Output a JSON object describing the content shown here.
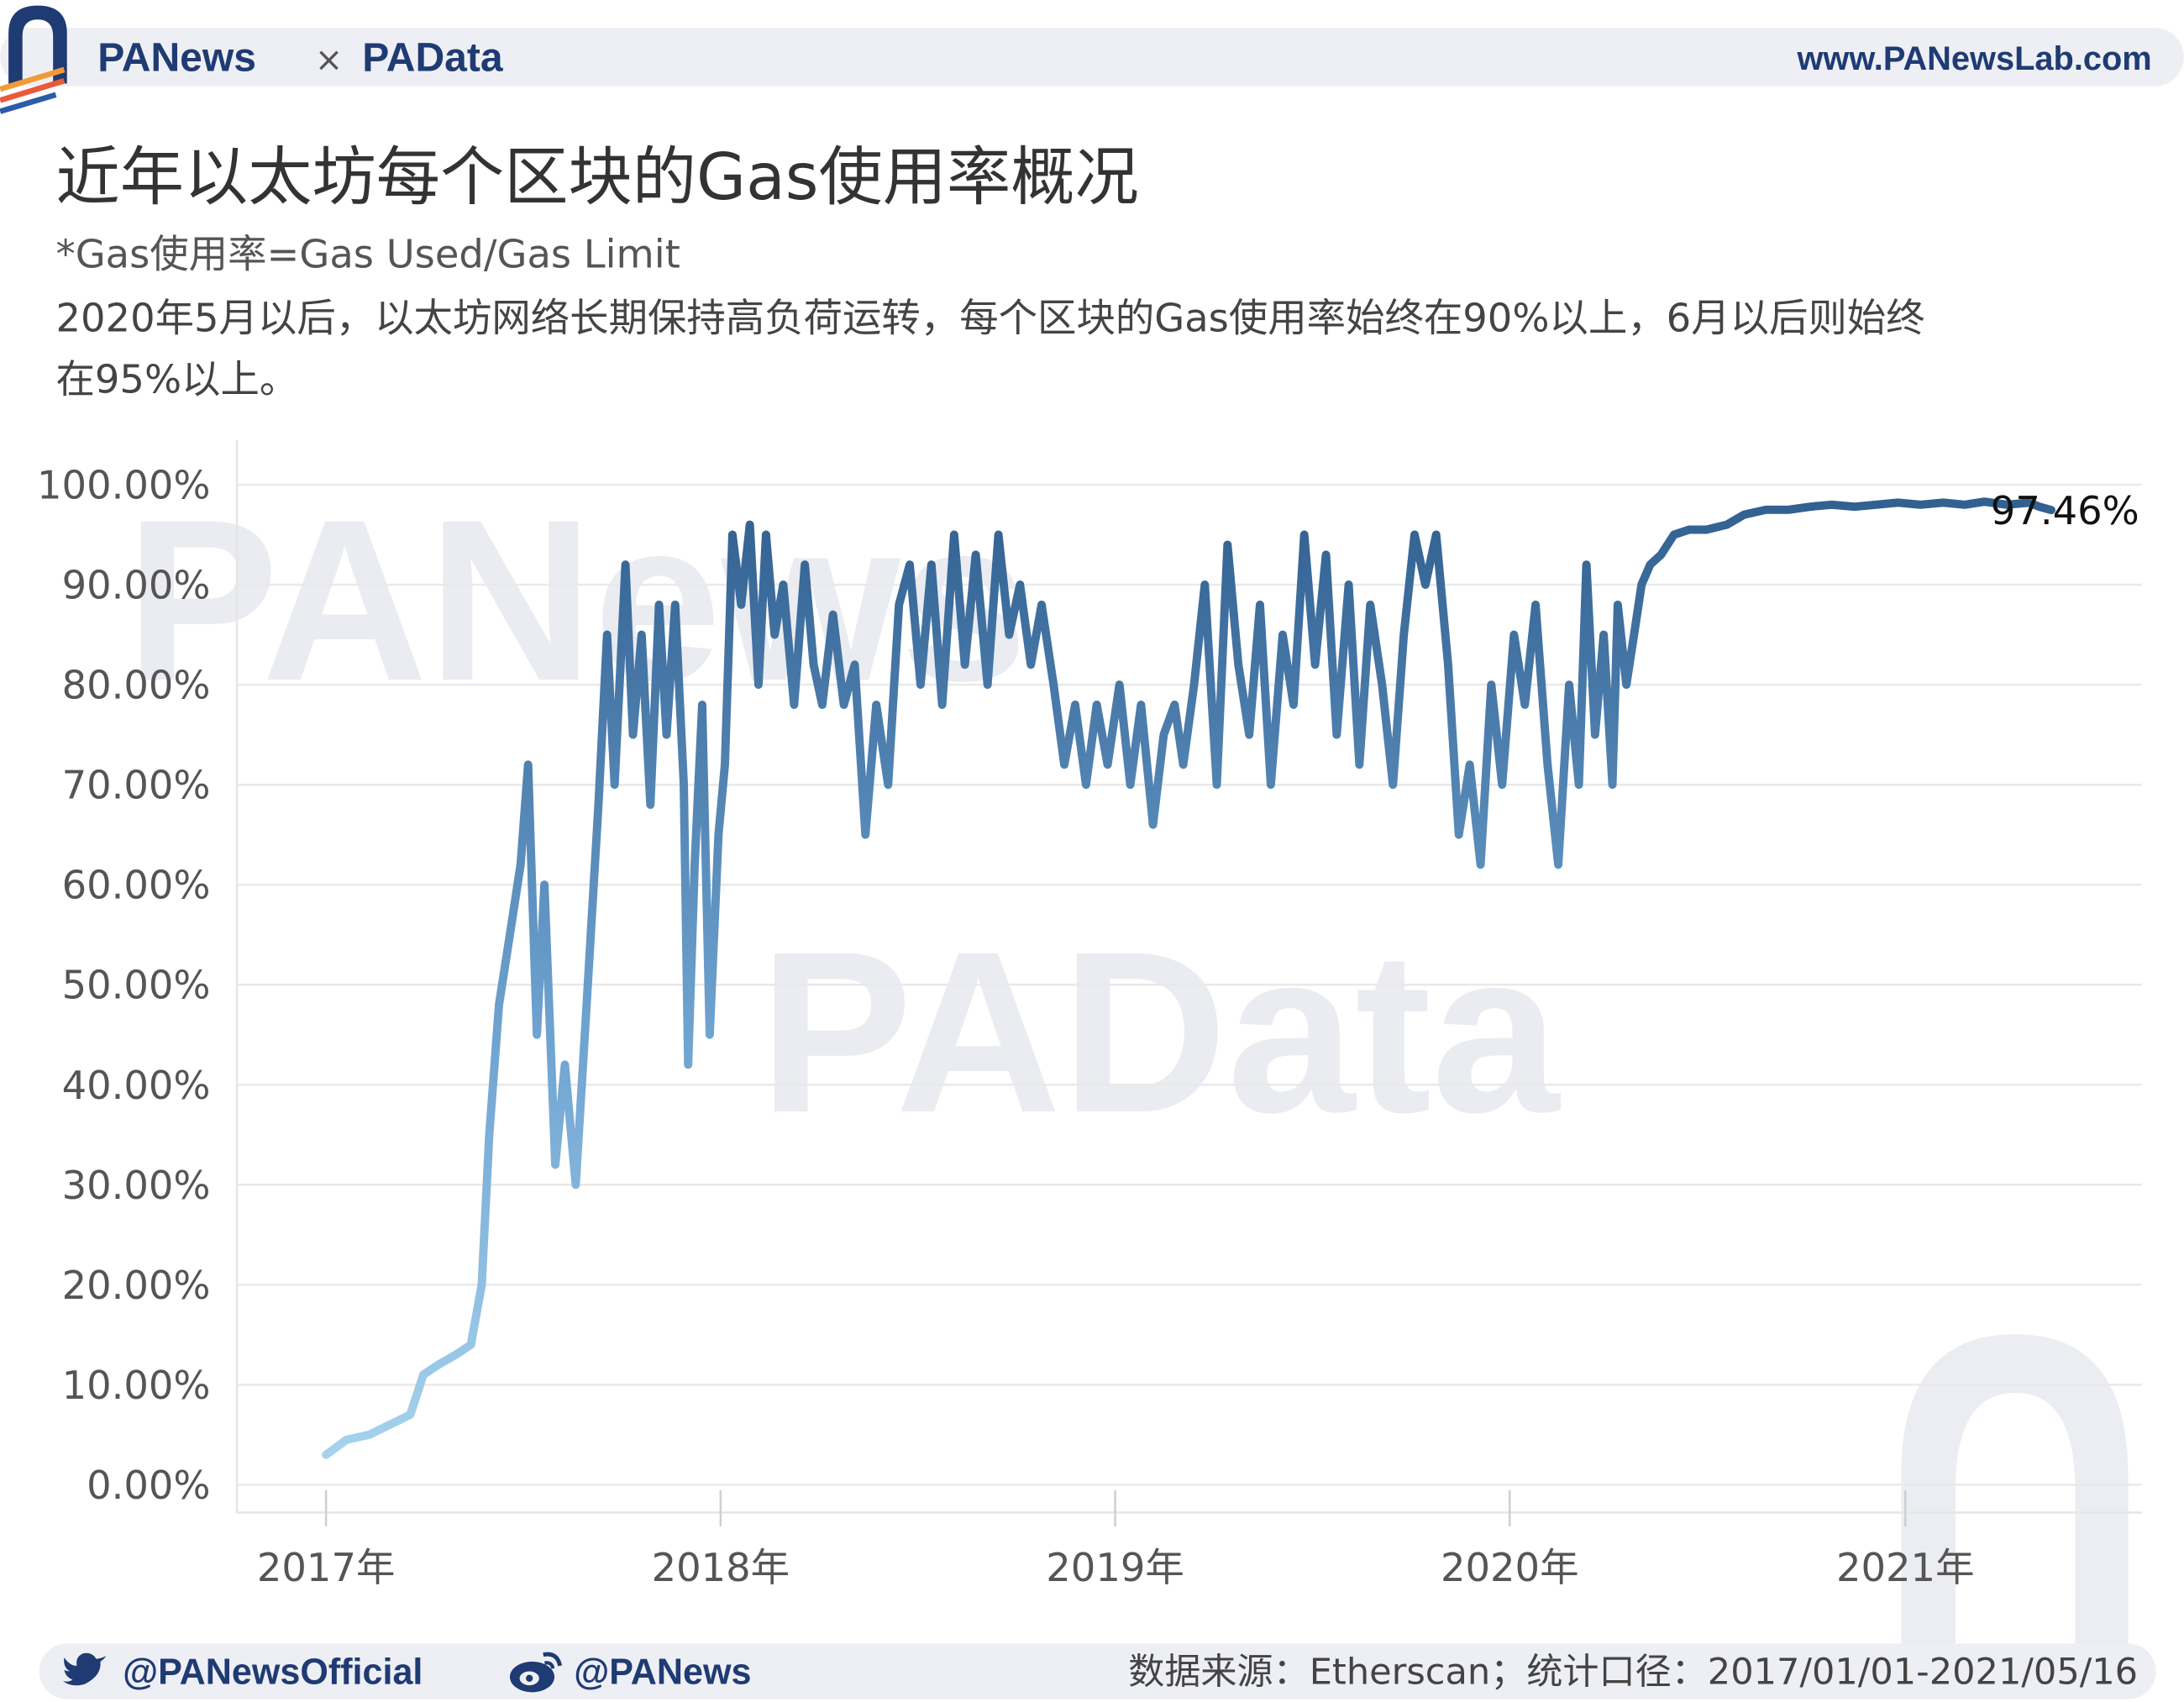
{
  "header": {
    "brand_left": "PANews",
    "brand_sep": "×",
    "brand_right": "PAData",
    "site_url": "www.PANewsLab.com"
  },
  "title": "近年以太坊每个区块的Gas使用率概况",
  "subtitle_formula": "*Gas使用率=Gas Used/Gas Limit",
  "description_lines": [
    "2020年5月以后，以太坊网络长期保持高负荷运转，每个区块的Gas使用率始终在90%以上，6月以后则始终",
    "在95%以上。"
  ],
  "watermarks": [
    "PANews",
    "PAData"
  ],
  "chart_data": {
    "type": "line",
    "title": "近年以太坊每个区块的Gas使用率概况",
    "xlabel": "",
    "ylabel": "",
    "x_range": [
      "2017-01-01",
      "2021-05-16"
    ],
    "ylim": [
      0,
      100
    ],
    "y_ticks": [
      "0.00%",
      "10.00%",
      "20.00%",
      "30.00%",
      "40.00%",
      "50.00%",
      "60.00%",
      "70.00%",
      "80.00%",
      "90.00%",
      "100.00%"
    ],
    "x_ticks": [
      {
        "date": "2017-01-01",
        "label": "2017年"
      },
      {
        "date": "2018-01-01",
        "label": "2018年"
      },
      {
        "date": "2019-01-01",
        "label": "2019年"
      },
      {
        "date": "2020-01-01",
        "label": "2020年"
      },
      {
        "date": "2021-01-01",
        "label": "2021年"
      }
    ],
    "grid": true,
    "color_scale": [
      "#a9d6ef",
      "#2f5e8f"
    ],
    "end_label": "97.46%",
    "series": [
      {
        "points": [
          [
            "2017-01-01",
            3
          ],
          [
            "2017-01-20",
            4.5
          ],
          [
            "2017-02-10",
            5
          ],
          [
            "2017-03-01",
            6
          ],
          [
            "2017-03-20",
            7
          ],
          [
            "2017-04-01",
            11
          ],
          [
            "2017-04-15",
            12
          ],
          [
            "2017-05-01",
            13
          ],
          [
            "2017-05-15",
            14
          ],
          [
            "2017-05-25",
            20
          ],
          [
            "2017-06-01",
            35
          ],
          [
            "2017-06-10",
            48
          ],
          [
            "2017-06-20",
            55
          ],
          [
            "2017-06-30",
            62
          ],
          [
            "2017-07-07",
            72
          ],
          [
            "2017-07-15",
            45
          ],
          [
            "2017-07-22",
            60
          ],
          [
            "2017-08-01",
            32
          ],
          [
            "2017-08-10",
            42
          ],
          [
            "2017-08-20",
            30
          ],
          [
            "2017-08-30",
            48
          ],
          [
            "2017-09-10",
            68
          ],
          [
            "2017-09-18",
            85
          ],
          [
            "2017-09-25",
            70
          ],
          [
            "2017-10-05",
            92
          ],
          [
            "2017-10-12",
            75
          ],
          [
            "2017-10-20",
            85
          ],
          [
            "2017-10-28",
            68
          ],
          [
            "2017-11-05",
            88
          ],
          [
            "2017-11-12",
            75
          ],
          [
            "2017-11-20",
            88
          ],
          [
            "2017-11-28",
            70
          ],
          [
            "2017-12-02",
            42
          ],
          [
            "2017-12-08",
            62
          ],
          [
            "2017-12-15",
            78
          ],
          [
            "2017-12-22",
            45
          ],
          [
            "2017-12-30",
            65
          ],
          [
            "2018-01-05",
            72
          ],
          [
            "2018-01-12",
            95
          ],
          [
            "2018-01-20",
            88
          ],
          [
            "2018-01-28",
            96
          ],
          [
            "2018-02-05",
            80
          ],
          [
            "2018-02-12",
            95
          ],
          [
            "2018-02-20",
            85
          ],
          [
            "2018-02-28",
            90
          ],
          [
            "2018-03-10",
            78
          ],
          [
            "2018-03-20",
            92
          ],
          [
            "2018-03-28",
            82
          ],
          [
            "2018-04-05",
            78
          ],
          [
            "2018-04-15",
            87
          ],
          [
            "2018-04-25",
            78
          ],
          [
            "2018-05-05",
            82
          ],
          [
            "2018-05-15",
            65
          ],
          [
            "2018-05-25",
            78
          ],
          [
            "2018-06-05",
            70
          ],
          [
            "2018-06-15",
            88
          ],
          [
            "2018-06-25",
            92
          ],
          [
            "2018-07-05",
            80
          ],
          [
            "2018-07-15",
            92
          ],
          [
            "2018-07-25",
            78
          ],
          [
            "2018-08-05",
            95
          ],
          [
            "2018-08-15",
            82
          ],
          [
            "2018-08-25",
            93
          ],
          [
            "2018-09-05",
            80
          ],
          [
            "2018-09-15",
            95
          ],
          [
            "2018-09-25",
            85
          ],
          [
            "2018-10-05",
            90
          ],
          [
            "2018-10-15",
            82
          ],
          [
            "2018-10-25",
            88
          ],
          [
            "2018-11-05",
            80
          ],
          [
            "2018-11-15",
            72
          ],
          [
            "2018-11-25",
            78
          ],
          [
            "2018-12-05",
            70
          ],
          [
            "2018-12-15",
            78
          ],
          [
            "2018-12-25",
            72
          ],
          [
            "2019-01-05",
            80
          ],
          [
            "2019-01-15",
            70
          ],
          [
            "2019-01-25",
            78
          ],
          [
            "2019-02-05",
            66
          ],
          [
            "2019-02-15",
            75
          ],
          [
            "2019-02-25",
            78
          ],
          [
            "2019-03-05",
            72
          ],
          [
            "2019-03-15",
            80
          ],
          [
            "2019-03-25",
            90
          ],
          [
            "2019-04-05",
            70
          ],
          [
            "2019-04-15",
            94
          ],
          [
            "2019-04-25",
            82
          ],
          [
            "2019-05-05",
            75
          ],
          [
            "2019-05-15",
            88
          ],
          [
            "2019-05-25",
            70
          ],
          [
            "2019-06-05",
            85
          ],
          [
            "2019-06-15",
            78
          ],
          [
            "2019-06-25",
            95
          ],
          [
            "2019-07-05",
            82
          ],
          [
            "2019-07-15",
            93
          ],
          [
            "2019-07-25",
            75
          ],
          [
            "2019-08-05",
            90
          ],
          [
            "2019-08-15",
            72
          ],
          [
            "2019-08-25",
            88
          ],
          [
            "2019-09-05",
            80
          ],
          [
            "2019-09-15",
            70
          ],
          [
            "2019-09-25",
            85
          ],
          [
            "2019-10-05",
            95
          ],
          [
            "2019-10-15",
            90
          ],
          [
            "2019-10-25",
            95
          ],
          [
            "2019-11-05",
            82
          ],
          [
            "2019-11-15",
            65
          ],
          [
            "2019-11-25",
            72
          ],
          [
            "2019-12-05",
            62
          ],
          [
            "2019-12-15",
            80
          ],
          [
            "2019-12-25",
            70
          ],
          [
            "2020-01-05",
            85
          ],
          [
            "2020-01-15",
            78
          ],
          [
            "2020-01-25",
            88
          ],
          [
            "2020-02-05",
            72
          ],
          [
            "2020-02-15",
            62
          ],
          [
            "2020-02-25",
            80
          ],
          [
            "2020-03-05",
            70
          ],
          [
            "2020-03-12",
            92
          ],
          [
            "2020-03-20",
            75
          ],
          [
            "2020-03-28",
            85
          ],
          [
            "2020-04-05",
            70
          ],
          [
            "2020-04-10",
            88
          ],
          [
            "2020-04-18",
            80
          ],
          [
            "2020-04-25",
            85
          ],
          [
            "2020-05-02",
            90
          ],
          [
            "2020-05-10",
            92
          ],
          [
            "2020-05-20",
            93
          ],
          [
            "2020-06-01",
            95
          ],
          [
            "2020-06-15",
            95.5
          ],
          [
            "2020-07-01",
            95.5
          ],
          [
            "2020-07-20",
            96
          ],
          [
            "2020-08-05",
            97
          ],
          [
            "2020-08-25",
            97.5
          ],
          [
            "2020-09-15",
            97.5
          ],
          [
            "2020-10-05",
            97.8
          ],
          [
            "2020-10-25",
            98
          ],
          [
            "2020-11-15",
            97.8
          ],
          [
            "2020-12-05",
            98
          ],
          [
            "2020-12-25",
            98.2
          ],
          [
            "2021-01-15",
            98
          ],
          [
            "2021-02-05",
            98.2
          ],
          [
            "2021-02-25",
            98
          ],
          [
            "2021-03-15",
            98.3
          ],
          [
            "2021-04-05",
            98
          ],
          [
            "2021-04-25",
            98.2
          ],
          [
            "2021-05-05",
            97.8
          ],
          [
            "2021-05-16",
            97.46
          ]
        ]
      }
    ]
  },
  "footer": {
    "twitter_handle": "@PANewsOfficial",
    "weibo_handle": "@PANews",
    "source": "数据来源：Etherscan；统计口径：2017/01/01-2021/05/16"
  },
  "icons": {
    "logo": "panews-logo-icon",
    "twitter": "twitter-bird-icon",
    "weibo": "weibo-icon"
  }
}
